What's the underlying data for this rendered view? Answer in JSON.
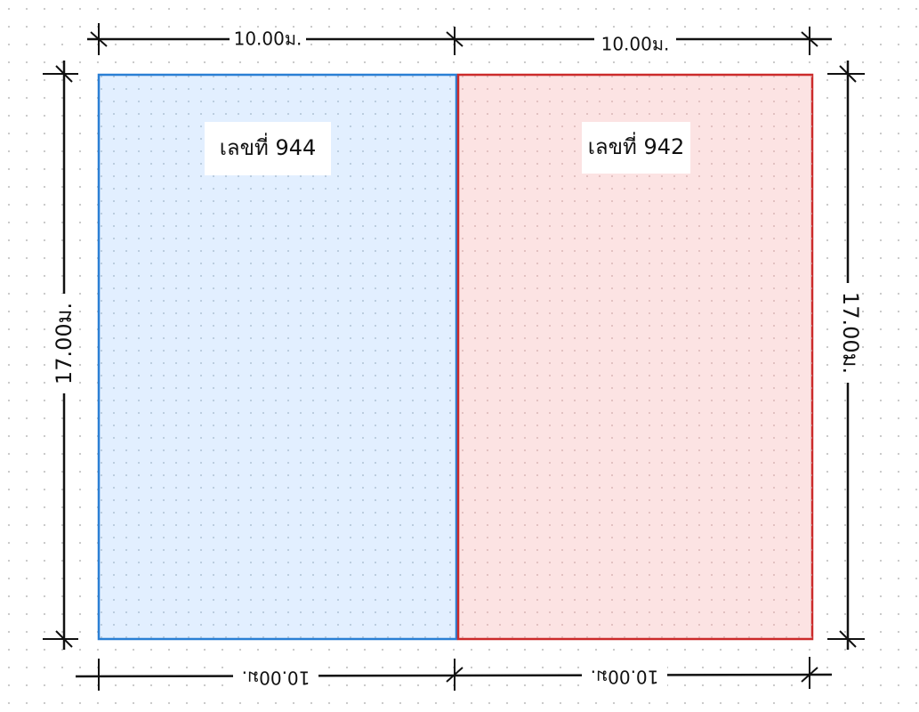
{
  "plots": [
    {
      "label": "เลขที่ 944"
    },
    {
      "label": "เลขที่ 942"
    }
  ],
  "dimensions": {
    "top": [
      "10.00ม.",
      "10.00ม."
    ],
    "bottom": [
      "10.00ม.",
      "10.00ม."
    ],
    "left": "17.00ม.",
    "right": "17.00ม."
  }
}
